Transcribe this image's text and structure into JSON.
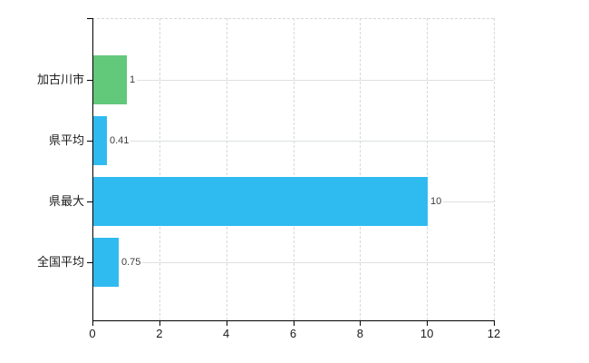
{
  "chart_data": {
    "type": "bar",
    "orientation": "horizontal",
    "title": "",
    "xlabel": "",
    "ylabel": "",
    "categories": [
      "加古川市",
      "県平均",
      "県最大",
      "全国平均"
    ],
    "values": [
      1,
      0.41,
      10,
      0.75
    ],
    "value_labels": [
      "1",
      "0.41",
      "10",
      "0.75"
    ],
    "bar_colors": [
      "#62c87a",
      "#30bbf0",
      "#30bbf0",
      "#30bbf0"
    ],
    "x_ticks": [
      0,
      2,
      4,
      6,
      8,
      10,
      12
    ],
    "x_tick_labels": [
      "0",
      "2",
      "4",
      "6",
      "8",
      "10",
      "12"
    ],
    "xlim": [
      0,
      12
    ],
    "grid": true,
    "legend": "none",
    "colors": {
      "background": "#ffffff",
      "axis": "#000000",
      "vertical_grid": "#d8d8d8",
      "horizontal_grid": "#dce2dc",
      "tick_text": "#1c1c1c",
      "value_text": "#3d3d3d"
    }
  }
}
